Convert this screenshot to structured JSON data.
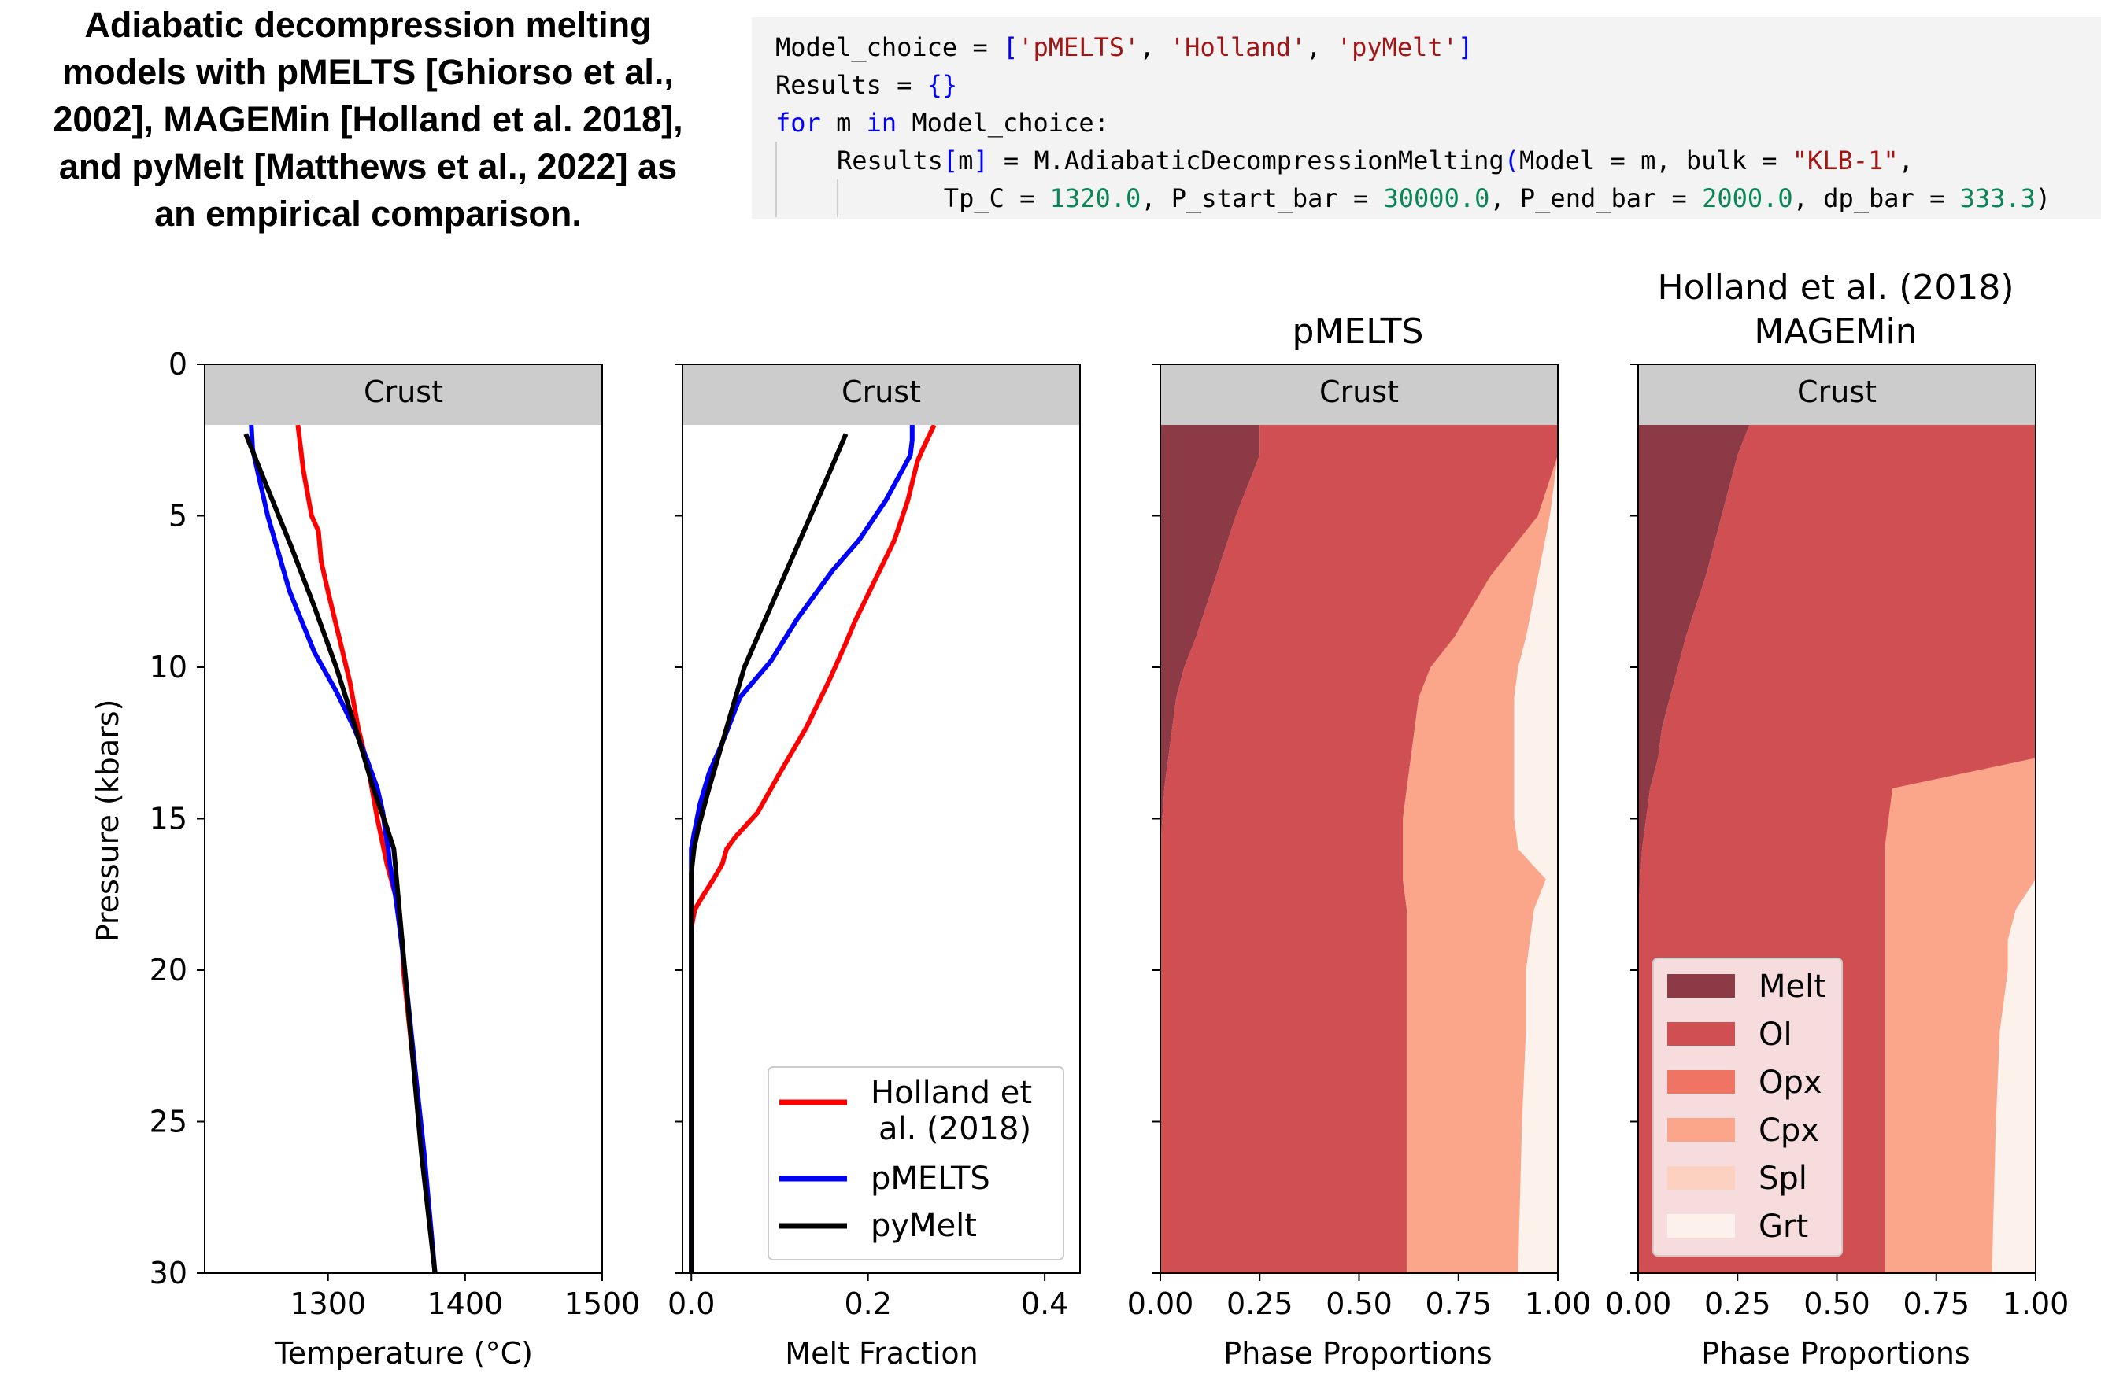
{
  "title": {
    "lines": [
      "Adiabatic decompression melting",
      "models with pMELTS [Ghiorso et al.,",
      "2002], MAGEMin [Holland et al. 2018],",
      "and pyMelt [Matthews et al., 2022] as",
      "an empirical comparison."
    ]
  },
  "code": {
    "line1": {
      "a": "Model_choice = ",
      "b": "[",
      "c": "'pMELTS'",
      "d": ", ",
      "e": "'Holland'",
      "f": ", ",
      "g": "'pyMelt'",
      "h": "]"
    },
    "line2": {
      "a": "Results = ",
      "b": "{}"
    },
    "line3": {
      "kw1": "for",
      "a": " m ",
      "kw2": "in",
      "b": " Model_choice:"
    },
    "line4": {
      "a": "Results",
      "b": "[",
      "c": "m",
      "d": "]",
      "e": " = M.AdiabaticDecompressionMelting",
      "f": "(",
      "g": "Model = m, bulk = ",
      "h": "\"KLB-1\"",
      "i": ","
    },
    "line5": {
      "a": "Tp_C = ",
      "b": "1320.0",
      "c": ", P_start_bar = ",
      "d": "30000.0",
      "e": ", P_end_bar = ",
      "f": "2000.0",
      "g": ", dp_bar = ",
      "h": "333.3",
      "i": ")"
    }
  },
  "colors": {
    "holland": "#ff0000",
    "pmelts": "#0000ff",
    "pymelt": "#000000",
    "crust": "#cccccc",
    "melt": "#8b3a46",
    "ol": "#cf4f53",
    "opx": "#f07464",
    "cpx": "#fba58a",
    "spl": "#fcd1bf",
    "grt": "#fdf1ec"
  },
  "chart_data": [
    {
      "type": "line",
      "title": "",
      "xlabel": "Temperature (°C)",
      "ylabel": "Pressure (kbars)",
      "xlim": [
        1210,
        1500
      ],
      "ylim": [
        30,
        0
      ],
      "xticks": [
        "1300",
        "1400",
        "1500"
      ],
      "yticks": [
        "0",
        "5",
        "10",
        "15",
        "20",
        "25",
        "30"
      ],
      "band_label": "Crust",
      "band_range": [
        0,
        2
      ],
      "series": [
        {
          "name": "Holland et al. (2018)",
          "color": "#ff0000",
          "x": [
            1278,
            1282,
            1288,
            1293,
            1295,
            1300,
            1308,
            1316,
            1322,
            1330,
            1336,
            1343,
            1349,
            1351,
            1352,
            1354,
            1355,
            1362,
            1370,
            1378
          ],
          "y": [
            2.0,
            3.5,
            5.0,
            5.5,
            6.5,
            7.5,
            9.0,
            10.5,
            12.0,
            13.5,
            15.0,
            16.5,
            17.5,
            18.0,
            18.5,
            19.0,
            20.0,
            23.0,
            26.5,
            30.0
          ]
        },
        {
          "name": "pMELTS",
          "color": "#0000ff",
          "x": [
            1244,
            1245,
            1256,
            1272,
            1290,
            1306,
            1319,
            1328,
            1336,
            1340,
            1342,
            1344,
            1345,
            1347,
            1349,
            1352,
            1356,
            1364,
            1370,
            1378
          ],
          "y": [
            2.0,
            2.8,
            5.0,
            7.5,
            9.5,
            10.8,
            12.0,
            13.0,
            14.0,
            14.8,
            15.5,
            16.0,
            16.5,
            17.0,
            17.5,
            18.5,
            20.0,
            23.5,
            26.0,
            30.0
          ]
        },
        {
          "name": "pyMelt",
          "color": "#000000",
          "x": [
            1240,
            1255,
            1273,
            1290,
            1306,
            1320,
            1333,
            1343,
            1348,
            1350,
            1352,
            1360,
            1368,
            1378
          ],
          "y": [
            2.3,
            4.0,
            6.0,
            8.0,
            10.0,
            12.0,
            14.0,
            15.3,
            16.0,
            17.0,
            18.0,
            22.0,
            26.0,
            30.0
          ]
        }
      ]
    },
    {
      "type": "line",
      "title": "",
      "xlabel": "Melt Fraction",
      "ylabel": "",
      "xlim": [
        -0.01,
        0.44
      ],
      "ylim": [
        30,
        0
      ],
      "xticks": [
        "0.0",
        "0.2",
        "0.4"
      ],
      "band_label": "Crust",
      "band_range": [
        0,
        2
      ],
      "series": [
        {
          "name": "Holland et al. (2018)",
          "color": "#ff0000",
          "x": [
            0.275,
            0.262,
            0.256,
            0.245,
            0.23,
            0.21,
            0.185,
            0.175,
            0.155,
            0.13,
            0.1,
            0.075,
            0.05,
            0.04,
            0.035,
            0.025,
            0.012,
            0.004,
            0.0,
            0.0
          ],
          "y": [
            2.0,
            2.8,
            3.2,
            4.5,
            5.8,
            7.0,
            8.5,
            9.2,
            10.5,
            12.0,
            13.5,
            14.8,
            15.6,
            16.0,
            16.5,
            17.0,
            17.6,
            18.0,
            18.6,
            30.0
          ]
        },
        {
          "name": "pMELTS",
          "color": "#0000ff",
          "x": [
            0.25,
            0.25,
            0.248,
            0.22,
            0.19,
            0.16,
            0.12,
            0.09,
            0.055,
            0.035,
            0.02,
            0.01,
            0.003,
            0.0,
            0.0
          ],
          "y": [
            2.0,
            2.5,
            3.0,
            4.5,
            5.8,
            6.8,
            8.4,
            9.8,
            11.0,
            12.5,
            13.5,
            14.5,
            15.5,
            16.0,
            30.0
          ]
        },
        {
          "name": "pyMelt",
          "color": "#000000",
          "x": [
            0.175,
            0.15,
            0.12,
            0.09,
            0.06,
            0.04,
            0.02,
            0.008,
            0.003,
            0.0,
            0.0
          ],
          "y": [
            2.3,
            4.0,
            6.0,
            8.0,
            10.0,
            12.0,
            14.0,
            15.3,
            16.0,
            16.8,
            30.0
          ]
        }
      ],
      "legend": {
        "position": "lower-right",
        "entries": [
          {
            "label_line1": "Holland et",
            "label_line2": "al. (2018)",
            "color": "#ff0000"
          },
          {
            "label_line1": "pMELTS",
            "label_line2": "",
            "color": "#0000ff"
          },
          {
            "label_line1": "pyMelt",
            "label_line2": "",
            "color": "#000000"
          }
        ]
      }
    },
    {
      "type": "area",
      "title": "pMELTS",
      "xlabel": "Phase Proportions",
      "xlim": [
        0,
        1
      ],
      "ylim": [
        30,
        0
      ],
      "xticks": [
        "0.00",
        "0.25",
        "0.50",
        "0.75",
        "1.00"
      ],
      "band_label": "Crust",
      "band_range": [
        0,
        2
      ],
      "p": [
        2,
        3,
        5,
        7,
        9,
        10,
        11,
        12,
        13,
        14,
        15,
        16,
        17,
        18,
        19,
        20,
        22,
        25,
        30
      ],
      "cumulative": [
        {
          "name": "Melt",
          "color": "#8b3a46",
          "values": [
            0.25,
            0.25,
            0.19,
            0.14,
            0.09,
            0.06,
            0.04,
            0.03,
            0.02,
            0.01,
            0.005,
            0,
            0,
            0,
            0,
            0,
            0,
            0,
            0
          ]
        },
        {
          "name": "Ol",
          "color": "#cf4f53",
          "values": [
            1.0,
            1.0,
            0.95,
            0.83,
            0.74,
            0.68,
            0.65,
            0.64,
            0.63,
            0.62,
            0.61,
            0.61,
            0.61,
            0.62,
            0.62,
            0.62,
            0.62,
            0.62,
            0.62
          ]
        },
        {
          "name": "Opx",
          "color": "#f07464",
          "values": [
            1.0,
            1.0,
            1.0,
            1.0,
            1.0,
            1.0,
            1.0,
            1.0,
            1.0,
            1.0,
            1.0,
            1.0,
            1.0,
            0.78,
            0.75,
            0.75,
            0.75,
            0.74,
            0.74
          ]
        },
        {
          "name": "Cpx",
          "color": "#fba58a",
          "values": [
            1.0,
            1.0,
            0.98,
            0.95,
            0.92,
            0.9,
            0.89,
            0.89,
            0.89,
            0.89,
            0.89,
            0.9,
            0.97,
            0.94,
            0.93,
            0.92,
            0.92,
            0.91,
            0.9
          ]
        },
        {
          "name": "Spl",
          "color": "#fcd1bf",
          "values": [
            1.0,
            1.0,
            1.0,
            1.0,
            1.0,
            1.0,
            1.0,
            1.0,
            1.0,
            1.0,
            1.0,
            1.0,
            1.0,
            0.94,
            0.93,
            0.92,
            0.92,
            0.91,
            0.9
          ]
        },
        {
          "name": "Grt",
          "color": "#fdf1ec",
          "values": [
            1.0,
            1.0,
            1.0,
            1.0,
            1.0,
            1.0,
            1.0,
            1.0,
            1.0,
            1.0,
            1.0,
            1.0,
            1.0,
            1.0,
            1.0,
            1.0,
            1.0,
            1.0,
            1.0
          ]
        }
      ]
    },
    {
      "type": "area",
      "title_line1": "Holland et al. (2018)",
      "title_line2": "MAGEMin",
      "xlabel": "Phase Proportions",
      "xlim": [
        0,
        1
      ],
      "ylim": [
        30,
        0
      ],
      "xticks": [
        "0.00",
        "0.25",
        "0.50",
        "0.75",
        "1.00"
      ],
      "band_label": "Crust",
      "band_range": [
        0,
        2
      ],
      "p": [
        2,
        3,
        5,
        7,
        9,
        10,
        11,
        12,
        13,
        14,
        15,
        16,
        17,
        18,
        19,
        20,
        21,
        22,
        25,
        30
      ],
      "cumulative": [
        {
          "name": "Melt",
          "color": "#8b3a46",
          "values": [
            0.28,
            0.25,
            0.21,
            0.17,
            0.12,
            0.1,
            0.08,
            0.06,
            0.05,
            0.03,
            0.02,
            0.01,
            0.005,
            0,
            0,
            0,
            0,
            0,
            0,
            0
          ]
        },
        {
          "name": "Ol",
          "color": "#cf4f53",
          "values": [
            1.0,
            1.0,
            1.0,
            1.0,
            1.0,
            1.0,
            1.0,
            1.0,
            1.0,
            0.64,
            0.63,
            0.62,
            0.62,
            0.62,
            0.62,
            0.62,
            0.62,
            0.62,
            0.62,
            0.62
          ]
        },
        {
          "name": "Opx",
          "color": "#f07464",
          "values": [
            1.0,
            0.99,
            0.98,
            0.97,
            1.0,
            0.99,
            0.98,
            0.97,
            0.97,
            0.97,
            0.97,
            0.97,
            0.97,
            1.0,
            1.0,
            1.0,
            1.0,
            1.0,
            1.0,
            1.0
          ]
        },
        {
          "name": "Cpx",
          "color": "#fba58a",
          "values": [
            1.0,
            1.0,
            1.0,
            1.0,
            1.0,
            1.0,
            1.0,
            1.0,
            1.0,
            1.0,
            1.0,
            1.0,
            1.0,
            0.95,
            0.93,
            0.93,
            0.92,
            0.91,
            0.9,
            0.89
          ]
        },
        {
          "name": "Spl",
          "color": "#fcd1bf",
          "values": [
            1.0,
            1.0,
            1.0,
            1.0,
            1.0,
            1.0,
            1.0,
            1.0,
            1.0,
            1.0,
            1.0,
            1.0,
            1.0,
            1.0,
            1.0,
            1.0,
            0.97,
            0.95,
            0.92,
            0.89
          ]
        },
        {
          "name": "Grt",
          "color": "#fdf1ec",
          "values": [
            1.0,
            1.0,
            1.0,
            1.0,
            1.0,
            1.0,
            1.0,
            1.0,
            1.0,
            1.0,
            1.0,
            1.0,
            1.0,
            1.0,
            1.0,
            1.0,
            1.0,
            1.0,
            1.0,
            1.0
          ]
        }
      ],
      "legend": {
        "position": "lower-left",
        "entries": [
          "Melt",
          "Ol",
          "Opx",
          "Cpx",
          "Spl",
          "Grt"
        ]
      }
    }
  ]
}
